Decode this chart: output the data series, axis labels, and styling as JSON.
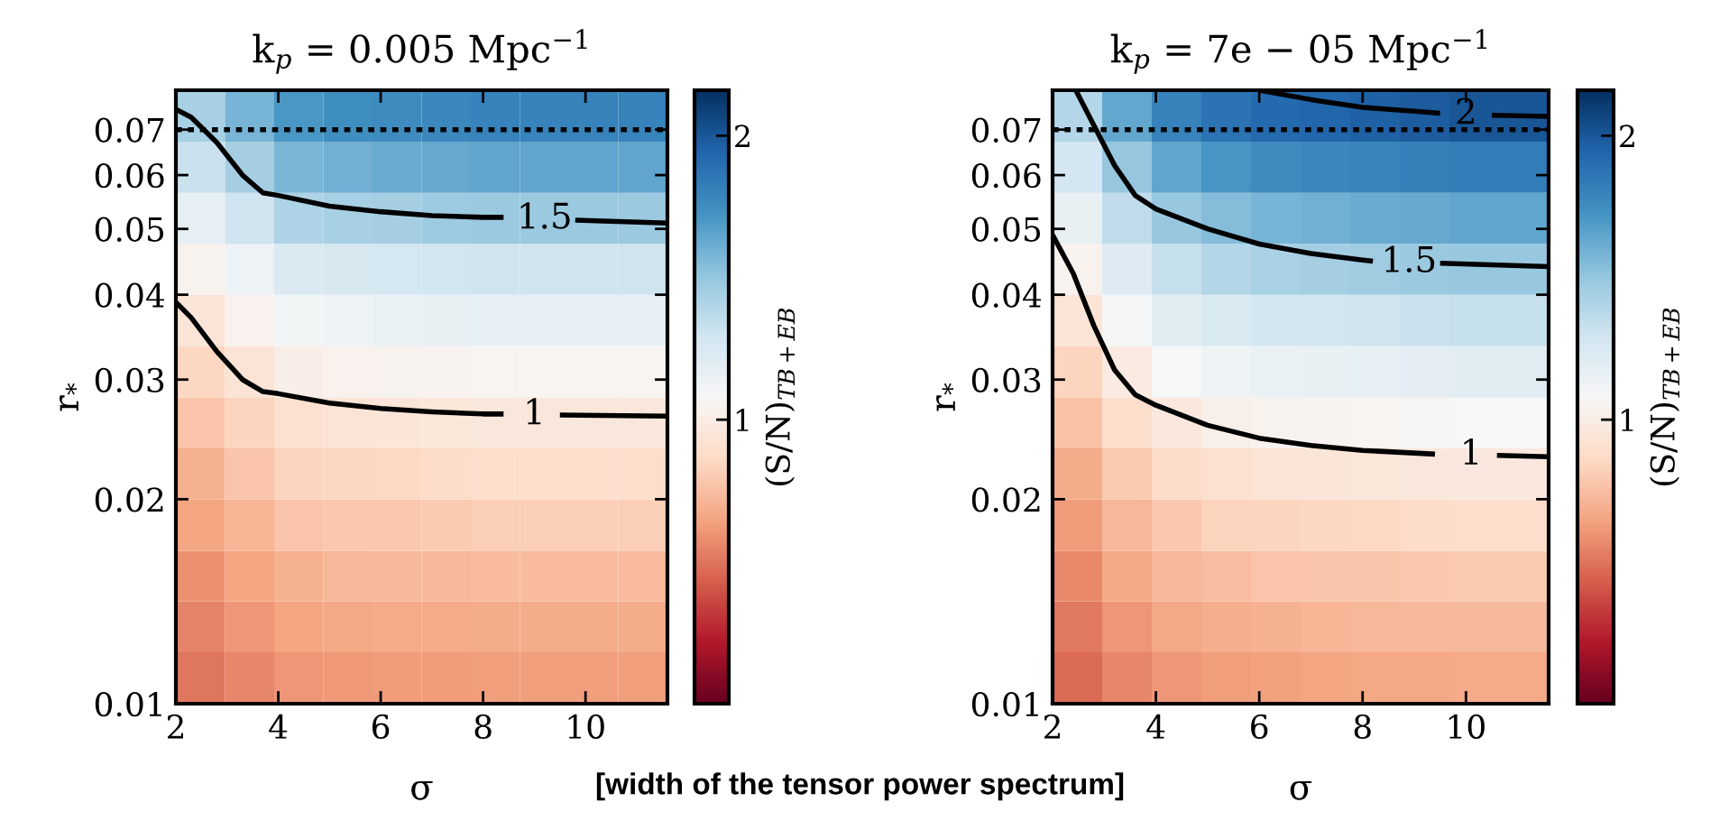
{
  "chart_data": [
    {
      "type": "heatmap",
      "title": "k$_{p}$ = 0.005 Mpc$^{−1}$",
      "xlabel": "σ",
      "ylabel": "r$_{*}$",
      "clabel": "(S/N)$_{TB+EB}$",
      "x": [
        2.48,
        3.44,
        4.4,
        5.36,
        6.32,
        7.28,
        8.24,
        9.2,
        10.16,
        11.12
      ],
      "y": [
        0.0733,
        0.0616,
        0.0518,
        0.0436,
        0.0367,
        0.0308,
        0.0259,
        0.0218,
        0.0183,
        0.0154,
        0.013,
        0.0109
      ],
      "cells": [
        [
          1.44,
          1.58,
          1.71,
          1.75,
          1.76,
          1.78,
          1.8,
          1.8,
          1.8,
          1.8
        ],
        [
          1.32,
          1.45,
          1.57,
          1.6,
          1.62,
          1.63,
          1.65,
          1.65,
          1.65,
          1.65
        ],
        [
          1.18,
          1.3,
          1.41,
          1.44,
          1.45,
          1.47,
          1.48,
          1.48,
          1.48,
          1.48
        ],
        [
          1.04,
          1.14,
          1.24,
          1.26,
          1.27,
          1.29,
          1.3,
          1.3,
          1.3,
          1.3
        ],
        [
          0.94,
          1.03,
          1.11,
          1.13,
          1.15,
          1.16,
          1.17,
          1.17,
          1.17,
          1.17
        ],
        [
          0.85,
          0.93,
          1.01,
          1.03,
          1.04,
          1.05,
          1.06,
          1.06,
          1.06,
          1.06
        ],
        [
          0.77,
          0.84,
          0.91,
          0.93,
          0.94,
          0.95,
          0.96,
          0.96,
          0.96,
          0.96
        ],
        [
          0.7,
          0.77,
          0.84,
          0.85,
          0.86,
          0.87,
          0.88,
          0.88,
          0.88,
          0.88
        ],
        [
          0.65,
          0.71,
          0.77,
          0.79,
          0.79,
          0.8,
          0.81,
          0.81,
          0.81,
          0.81
        ],
        [
          0.59,
          0.65,
          0.7,
          0.72,
          0.73,
          0.73,
          0.74,
          0.74,
          0.74,
          0.74
        ],
        [
          0.54,
          0.6,
          0.65,
          0.66,
          0.67,
          0.67,
          0.68,
          0.68,
          0.68,
          0.68
        ],
        [
          0.5,
          0.55,
          0.6,
          0.61,
          0.62,
          0.62,
          0.63,
          0.63,
          0.63,
          0.63
        ]
      ],
      "series": [
        {
          "type": "line",
          "color": "#000000",
          "x": [
            2,
            2.3,
            2.8,
            3.3,
            3.7,
            4,
            5,
            6,
            7,
            8,
            8.4,
            9.0,
            9.5,
            11.6
          ],
          "values": [
            0.039,
            0.037,
            0.033,
            0.03,
            0.0288,
            0.0286,
            0.0277,
            0.0272,
            0.0269,
            0.0267,
            0.0267,
            null,
            0.0266,
            0.0265
          ]
        },
        {
          "type": "line",
          "color": "#000000",
          "x": [
            2,
            2.3,
            2.8,
            3.3,
            3.7,
            4,
            5,
            6,
            7,
            8,
            8.4,
            9.2,
            9.8,
            11.6
          ],
          "values": [
            0.075,
            0.073,
            0.067,
            0.06,
            0.0565,
            0.056,
            0.054,
            0.053,
            0.0523,
            0.052,
            0.052,
            null,
            0.0515,
            0.051
          ]
        }
      ],
      "ref_lines": [
        {
          "axis": "y",
          "value": 0.07,
          "color": "#000000",
          "line_style": "dotted"
        }
      ],
      "xlim": [
        2,
        11.6
      ],
      "ylim": [
        0.01,
        0.08
      ],
      "log": "y",
      "xticks": [
        2,
        4,
        6,
        8,
        10
      ],
      "yticks": [
        0.01,
        0.02,
        0.03,
        0.04,
        0.05,
        0.06,
        0.07
      ],
      "clim": [
        0,
        2.16
      ],
      "cticks": [
        1,
        2
      ],
      "grid": false,
      "legend": false,
      "annotations": [
        "1",
        "1.5",
        "[width of the tensor power spectrum]"
      ]
    },
    {
      "type": "heatmap",
      "title": "k$_{p}$ = 7e − 05 Mpc$^{−1}$",
      "xlabel": "σ",
      "ylabel": "r$_{*}$",
      "clabel": "(S/N)$_{TB+EB}$",
      "x": [
        2.48,
        3.44,
        4.4,
        5.36,
        6.32,
        7.28,
        8.24,
        9.2,
        10.16,
        11.12
      ],
      "y": [
        0.0733,
        0.0616,
        0.0518,
        0.0436,
        0.0367,
        0.0308,
        0.0259,
        0.0218,
        0.0183,
        0.0154,
        0.013,
        0.0109
      ],
      "cells": [
        [
          1.4,
          1.64,
          1.8,
          1.88,
          1.92,
          1.94,
          1.96,
          1.98,
          2.0,
          2.0
        ],
        [
          1.28,
          1.5,
          1.65,
          1.72,
          1.76,
          1.78,
          1.79,
          1.81,
          1.83,
          1.83
        ],
        [
          1.16,
          1.35,
          1.49,
          1.55,
          1.58,
          1.6,
          1.62,
          1.63,
          1.65,
          1.65
        ],
        [
          1.04,
          1.22,
          1.34,
          1.4,
          1.43,
          1.45,
          1.46,
          1.48,
          1.49,
          1.49
        ],
        [
          0.93,
          1.09,
          1.2,
          1.25,
          1.28,
          1.29,
          1.3,
          1.32,
          1.33,
          1.33
        ],
        [
          0.84,
          0.98,
          1.08,
          1.13,
          1.15,
          1.16,
          1.18,
          1.19,
          1.2,
          1.2
        ],
        [
          0.76,
          0.89,
          0.97,
          1.02,
          1.04,
          1.05,
          1.06,
          1.07,
          1.08,
          1.08
        ],
        [
          0.68,
          0.8,
          0.87,
          0.91,
          0.93,
          0.94,
          0.95,
          0.96,
          0.97,
          0.97
        ],
        [
          0.62,
          0.72,
          0.79,
          0.83,
          0.84,
          0.85,
          0.86,
          0.87,
          0.88,
          0.88
        ],
        [
          0.56,
          0.66,
          0.72,
          0.75,
          0.77,
          0.78,
          0.78,
          0.79,
          0.8,
          0.8
        ],
        [
          0.51,
          0.6,
          0.66,
          0.69,
          0.7,
          0.71,
          0.72,
          0.72,
          0.73,
          0.73
        ],
        [
          0.47,
          0.55,
          0.6,
          0.63,
          0.64,
          0.65,
          0.66,
          0.66,
          0.67,
          0.67
        ]
      ],
      "series": [
        {
          "type": "line",
          "color": "#000000",
          "x": [
            2,
            2.4,
            2.8,
            3.2,
            3.6,
            4,
            5,
            6,
            7,
            8,
            9.4,
            10.1,
            10.6,
            11.6
          ],
          "values": [
            0.049,
            0.043,
            0.036,
            0.031,
            0.0285,
            0.0275,
            0.0257,
            0.0246,
            0.024,
            0.0236,
            0.0233,
            null,
            0.0232,
            0.0231
          ]
        },
        {
          "type": "line",
          "color": "#000000",
          "x": [
            2.45,
            2.8,
            3.2,
            3.6,
            4,
            5,
            6,
            7,
            8,
            8.2,
            8.9,
            9.5,
            11.6
          ],
          "values": [
            0.08,
            0.071,
            0.062,
            0.056,
            0.0535,
            0.05,
            0.0475,
            0.046,
            0.045,
            0.0448,
            null,
            0.0445,
            0.044
          ]
        },
        {
          "type": "line",
          "color": "#000000",
          "x": [
            6,
            7,
            8,
            9,
            9.5,
            10.0,
            10.5,
            11.6
          ],
          "values": [
            0.08,
            0.0775,
            0.0755,
            0.0745,
            0.074,
            null,
            0.0735,
            0.0732
          ]
        }
      ],
      "ref_lines": [
        {
          "axis": "y",
          "value": 0.07,
          "color": "#000000",
          "line_style": "dotted"
        }
      ],
      "xlim": [
        2,
        11.6
      ],
      "ylim": [
        0.01,
        0.08
      ],
      "log": "y",
      "xticks": [
        2,
        4,
        6,
        8,
        10
      ],
      "yticks": [
        0.01,
        0.02,
        0.03,
        0.04,
        0.05,
        0.06,
        0.07
      ],
      "clim": [
        0,
        2.16
      ],
      "cticks": [
        1,
        2
      ],
      "grid": false,
      "legend": false,
      "annotations": [
        "1",
        "1.5",
        "2"
      ]
    }
  ]
}
